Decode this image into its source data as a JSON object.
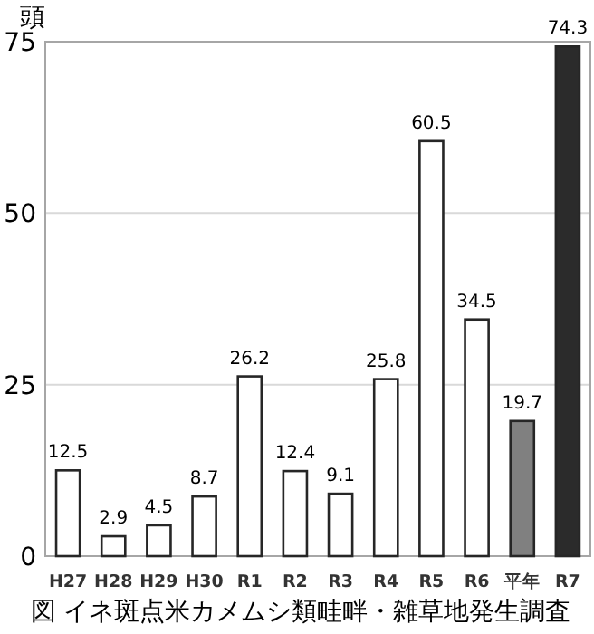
{
  "chart_data": {
    "type": "bar",
    "ylabel": "頭",
    "annotations": [
      "図 イネ斑点米カメムシ類畦畔・雑草地発生調査"
    ],
    "categories": [
      "H27",
      "H28",
      "H29",
      "H30",
      "R1",
      "R2",
      "R3",
      "R4",
      "R5",
      "R6",
      "平年",
      "R7"
    ],
    "values": [
      12.5,
      2.9,
      4.5,
      8.7,
      26.2,
      12.4,
      9.1,
      25.8,
      60.5,
      34.5,
      19.7,
      74.3
    ],
    "colors": [
      "#ffffff",
      "#ffffff",
      "#ffffff",
      "#ffffff",
      "#ffffff",
      "#ffffff",
      "#ffffff",
      "#ffffff",
      "#ffffff",
      "#ffffff",
      "#808080",
      "#2b2b2b"
    ],
    "ylim": [
      0,
      75
    ],
    "yticks": [
      0,
      25,
      50,
      75
    ],
    "grid": "y",
    "data_labels": true
  }
}
